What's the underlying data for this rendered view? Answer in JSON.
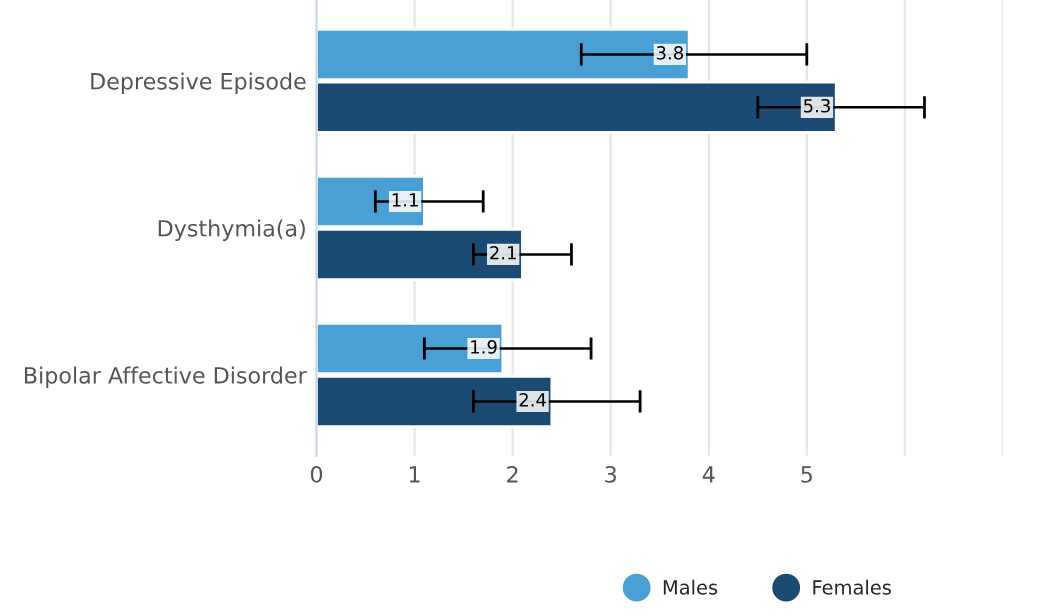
{
  "chart_data": {
    "type": "bar",
    "orientation": "horizontal",
    "categories": [
      "Depressive Episode",
      "Dysthymia(a)",
      "Bipolar Affective Disorder"
    ],
    "series": [
      {
        "name": "Males",
        "color": "#4a9fd4",
        "values": [
          3.8,
          1.1,
          1.9
        ],
        "errors": [
          [
            2.7,
            5.0
          ],
          [
            0.6,
            1.7
          ],
          [
            1.1,
            2.8
          ]
        ]
      },
      {
        "name": "Females",
        "color": "#1b4a73",
        "values": [
          5.3,
          2.1,
          2.4
        ],
        "errors": [
          [
            4.5,
            6.2
          ],
          [
            1.6,
            2.6
          ],
          [
            1.6,
            3.3
          ]
        ]
      }
    ],
    "xlim": [
      0,
      7
    ],
    "xticks": [
      0,
      1,
      2,
      3,
      4,
      5,
      {
        "value": 6,
        "label": null
      },
      {
        "value": 7,
        "label": null
      }
    ],
    "grid": "x",
    "legend": "bottom",
    "data_labels": true
  }
}
